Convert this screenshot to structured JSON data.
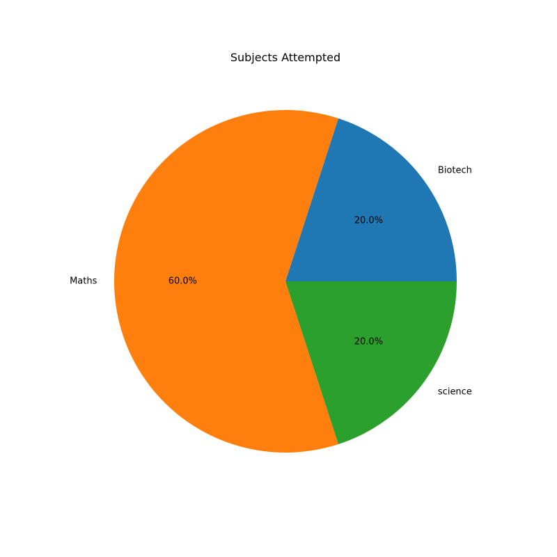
{
  "chart_data": {
    "type": "pie",
    "title": "Subjects Attempted",
    "categories": [
      "Biotech",
      "Maths",
      "science"
    ],
    "values": [
      20,
      60,
      20
    ],
    "percent_labels": [
      "20.0%",
      "60.0%",
      "20.0%"
    ],
    "colors": [
      "#1f77b4",
      "#ff7f0e",
      "#2ca02c"
    ],
    "start_angle_deg": 0,
    "direction": "counterclockwise"
  }
}
